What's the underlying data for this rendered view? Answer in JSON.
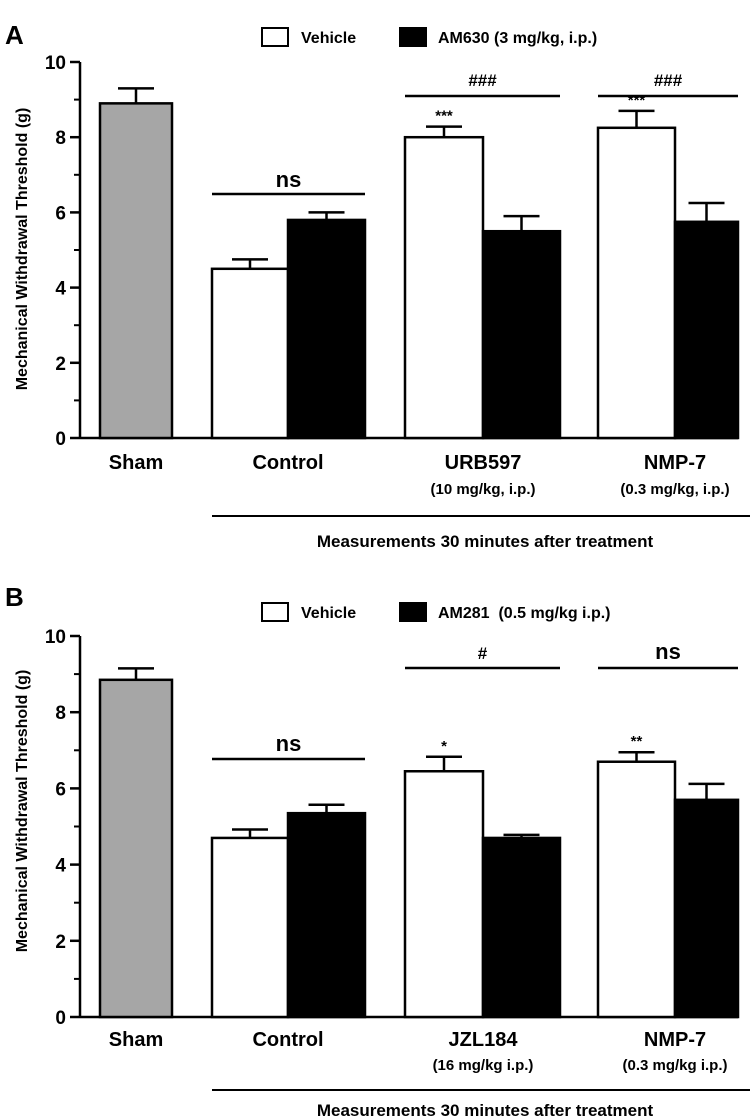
{
  "chart_data": [
    {
      "type": "bar",
      "panel_label": "A",
      "ylabel": "Mechanical Withdrawal Threshold (g)",
      "ylim": [
        0,
        10
      ],
      "yticks": [
        "0",
        "2",
        "4",
        "6",
        "8",
        "10"
      ],
      "legend": {
        "placement": "top",
        "entries": [
          {
            "name": "Vehicle",
            "fill": "#ffffff"
          },
          {
            "name": "AM630 (3 mg/kg, i.p.)",
            "fill": "#000000"
          }
        ]
      },
      "groups": [
        {
          "label": "Sham",
          "sublabel": "",
          "bars": [
            {
              "value": 8.9,
              "error": 0.4,
              "fill": "#a6a6a6",
              "star": ""
            }
          ],
          "comparison": ""
        },
        {
          "label": "Control",
          "sublabel": "",
          "bars": [
            {
              "value": 4.5,
              "error": 0.25,
              "fill": "#ffffff",
              "star": ""
            },
            {
              "value": 5.8,
              "error": 0.2,
              "fill": "#000000",
              "star": ""
            }
          ],
          "comparison": "ns"
        },
        {
          "label": "URB597",
          "sublabel": "(10 mg/kg, i.p.)",
          "bars": [
            {
              "value": 8.0,
              "error": 0.28,
              "fill": "#ffffff",
              "star": "***"
            },
            {
              "value": 5.5,
              "error": 0.4,
              "fill": "#000000",
              "star": ""
            }
          ],
          "comparison": "###"
        },
        {
          "label": "NMP-7",
          "sublabel": "(0.3 mg/kg, i.p.)",
          "bars": [
            {
              "value": 8.25,
              "error": 0.45,
              "fill": "#ffffff",
              "star": "***"
            },
            {
              "value": 5.75,
              "error": 0.5,
              "fill": "#000000",
              "star": ""
            }
          ],
          "comparison": "###"
        }
      ],
      "bracket_label": "Measurements 30 minutes after treatment"
    },
    {
      "type": "bar",
      "panel_label": "B",
      "ylabel": "Mechanical Withdrawal Threshold (g)",
      "ylim": [
        0,
        10
      ],
      "yticks": [
        "0",
        "2",
        "4",
        "6",
        "8",
        "10"
      ],
      "legend": {
        "placement": "top",
        "entries": [
          {
            "name": "Vehicle",
            "fill": "#ffffff"
          },
          {
            "name": "AM281  (0.5 mg/kg i.p.)",
            "fill": "#000000"
          }
        ]
      },
      "groups": [
        {
          "label": "Sham",
          "sublabel": "",
          "bars": [
            {
              "value": 8.85,
              "error": 0.3,
              "fill": "#a6a6a6",
              "star": ""
            }
          ],
          "comparison": ""
        },
        {
          "label": "Control",
          "sublabel": "",
          "bars": [
            {
              "value": 4.7,
              "error": 0.22,
              "fill": "#ffffff",
              "star": ""
            },
            {
              "value": 5.35,
              "error": 0.22,
              "fill": "#000000",
              "star": ""
            }
          ],
          "comparison": "ns"
        },
        {
          "label": "JZL184",
          "sublabel": "(16 mg/kg i.p.)",
          "bars": [
            {
              "value": 6.45,
              "error": 0.38,
              "fill": "#ffffff",
              "star": "*"
            },
            {
              "value": 4.7,
              "error": 0.08,
              "fill": "#000000",
              "star": ""
            }
          ],
          "comparison": "#"
        },
        {
          "label": "NMP-7",
          "sublabel": "(0.3 mg/kg i.p.)",
          "bars": [
            {
              "value": 6.7,
              "error": 0.25,
              "fill": "#ffffff",
              "star": "**"
            },
            {
              "value": 5.7,
              "error": 0.42,
              "fill": "#000000",
              "star": ""
            }
          ],
          "comparison": "ns"
        }
      ],
      "bracket_label": "Measurements 30 minutes after treatment"
    }
  ]
}
